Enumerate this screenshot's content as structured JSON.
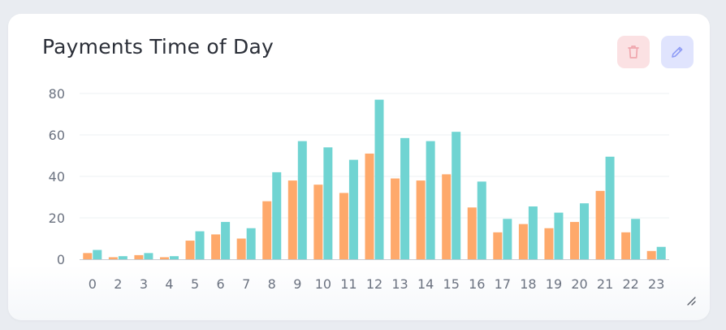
{
  "card": {
    "title": "Payments Time of Day"
  },
  "icons": {
    "delete": "trash-icon",
    "edit": "pencil-icon",
    "resize": "resize-handle-icon"
  },
  "colors": {
    "series_a": "#fea96b",
    "series_b": "#70d4d2",
    "grid": "#eef0f3",
    "axis": "#c8ccd2",
    "delete_bg": "#fbe1e3",
    "delete_icon": "#f0a7ae",
    "edit_bg": "#e0e4fd",
    "edit_icon": "#8f9cf5"
  },
  "chart_data": {
    "type": "bar",
    "categories": [
      "0",
      "2",
      "3",
      "4",
      "5",
      "6",
      "7",
      "8",
      "9",
      "10",
      "11",
      "12",
      "13",
      "14",
      "15",
      "16",
      "17",
      "18",
      "19",
      "20",
      "21",
      "22",
      "23"
    ],
    "series": [
      {
        "values": [
          3,
          1,
          2,
          1,
          9,
          12,
          10,
          28,
          38,
          36,
          32,
          51,
          39,
          38,
          41,
          25,
          13,
          17,
          15,
          18,
          33,
          13,
          4
        ]
      },
      {
        "values": [
          4.5,
          1.5,
          3,
          1.5,
          13.5,
          18,
          15,
          42,
          57,
          54,
          48,
          77,
          58.5,
          57,
          61.5,
          37.5,
          19.5,
          25.5,
          22.5,
          27,
          49.5,
          19.5,
          6
        ]
      }
    ],
    "ylim": [
      0,
      80
    ],
    "yticks": [
      0,
      20,
      40,
      60,
      80
    ],
    "grid": true,
    "legend": "none"
  }
}
